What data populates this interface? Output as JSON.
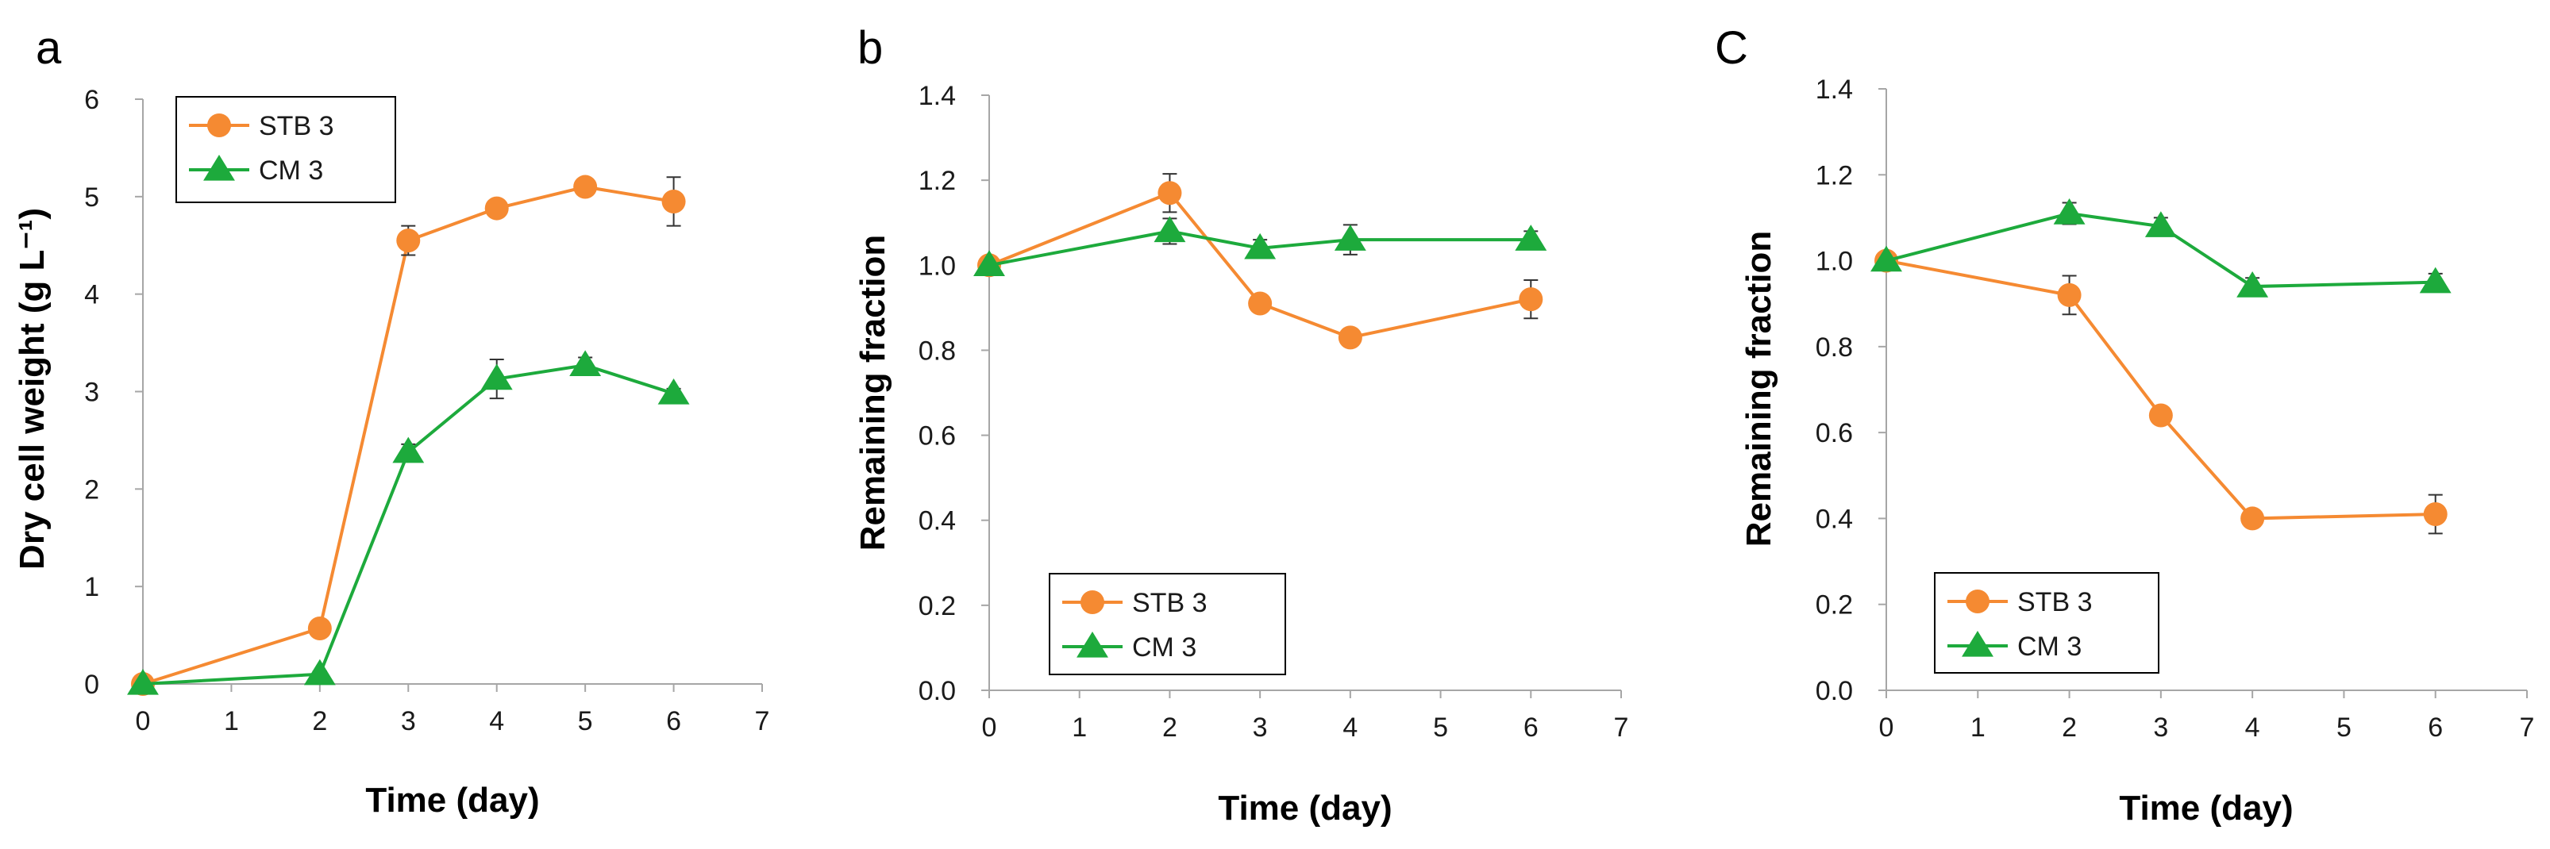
{
  "colors": {
    "stb": "#F58A32",
    "cm": "#1DAA3C",
    "axis": "#a6a6a6",
    "errorbar": "#333333"
  },
  "chart_data": [
    {
      "type": "line",
      "panel_label": "a",
      "xlabel": "Time (day)",
      "ylabel": "Dry cell weight (g L⁻¹)",
      "xlim": [
        0,
        7
      ],
      "ylim": [
        0,
        6
      ],
      "xticks": [
        "0",
        "1",
        "2",
        "3",
        "4",
        "5",
        "6",
        "7"
      ],
      "yticks": [
        "0",
        "1",
        "2",
        "3",
        "4",
        "5",
        "6"
      ],
      "grid": false,
      "legend": "top-left",
      "series": [
        {
          "name": "STB 3",
          "marker": "circle",
          "x": [
            0,
            2,
            3,
            4,
            5,
            6
          ],
          "y": [
            0.0,
            0.57,
            4.55,
            4.88,
            5.1,
            4.95
          ],
          "err": [
            0,
            0.04,
            0.15,
            0.06,
            0.05,
            0.25
          ]
        },
        {
          "name": "CM 3",
          "marker": "triangle",
          "x": [
            0,
            2,
            3,
            4,
            5,
            6
          ],
          "y": [
            0.0,
            0.1,
            2.38,
            3.13,
            3.27,
            2.98
          ],
          "err": [
            0,
            0.03,
            0.08,
            0.2,
            0.08,
            0.05
          ]
        }
      ]
    },
    {
      "type": "line",
      "panel_label": "b",
      "xlabel": "Time (day)",
      "ylabel": "Remaining fraction",
      "xlim": [
        0,
        7
      ],
      "ylim": [
        0,
        1.4
      ],
      "xticks": [
        "0",
        "1",
        "2",
        "3",
        "4",
        "5",
        "6",
        "7"
      ],
      "yticks": [
        "0.0",
        "0.2",
        "0.4",
        "0.6",
        "0.8",
        "1.0",
        "1.2",
        "1.4"
      ],
      "grid": false,
      "legend": "bottom-left",
      "series": [
        {
          "name": "STB 3",
          "marker": "circle",
          "x": [
            0,
            2,
            3,
            4,
            6
          ],
          "y": [
            1.0,
            1.17,
            0.91,
            0.83,
            0.92
          ],
          "err": [
            0,
            0.045,
            0.015,
            0.015,
            0.045
          ]
        },
        {
          "name": "CM 3",
          "marker": "triangle",
          "x": [
            0,
            2,
            3,
            4,
            6
          ],
          "y": [
            1.0,
            1.08,
            1.04,
            1.06,
            1.06
          ],
          "err": [
            0,
            0.03,
            0.02,
            0.035,
            0.02
          ]
        }
      ]
    },
    {
      "type": "line",
      "panel_label": "C",
      "xlabel": "Time (day)",
      "ylabel": "Remaining fraction",
      "xlim": [
        0,
        7
      ],
      "ylim": [
        0,
        1.4
      ],
      "xticks": [
        "0",
        "1",
        "2",
        "3",
        "4",
        "5",
        "6",
        "7"
      ],
      "yticks": [
        "0.0",
        "0.2",
        "0.4",
        "0.6",
        "0.8",
        "1.0",
        "1.2",
        "1.4"
      ],
      "grid": false,
      "legend": "bottom-left",
      "series": [
        {
          "name": "STB 3",
          "marker": "circle",
          "x": [
            0,
            2,
            3,
            4,
            6
          ],
          "y": [
            1.0,
            0.92,
            0.64,
            0.4,
            0.41
          ],
          "err": [
            0,
            0.045,
            0.015,
            0.015,
            0.045
          ]
        },
        {
          "name": "CM 3",
          "marker": "triangle",
          "x": [
            0,
            2,
            3,
            4,
            6
          ],
          "y": [
            1.0,
            1.11,
            1.08,
            0.94,
            0.95
          ],
          "err": [
            0,
            0.025,
            0.02,
            0.02,
            0.02
          ]
        }
      ]
    }
  ]
}
